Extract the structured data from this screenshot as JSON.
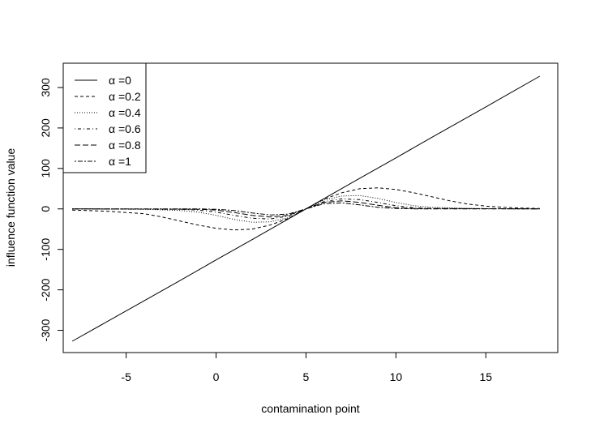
{
  "chart_data": {
    "type": "line",
    "title": "",
    "xlabel": "contamination point",
    "ylabel": "influence function value",
    "xlim": [
      -8.5,
      19
    ],
    "ylim": [
      -355,
      360
    ],
    "xticks": [
      -5,
      0,
      5,
      10,
      15
    ],
    "yticks": [
      -300,
      -200,
      -100,
      0,
      100,
      200,
      300
    ],
    "grid": false,
    "legend_position": "top-left",
    "series": [
      {
        "name": "α =0",
        "dash": "solid",
        "x": [
          -8,
          -5,
          -2,
          0,
          2,
          5,
          8,
          10,
          12,
          15,
          18
        ],
        "y": [
          -327,
          -252,
          -177,
          -126,
          -76,
          0,
          76,
          126,
          177,
          252,
          328
        ]
      },
      {
        "name": "α =0.2",
        "dash": "dashed",
        "x": [
          -8,
          -6,
          -4,
          -3,
          -2,
          -1,
          0,
          1,
          2,
          3,
          4,
          5,
          6,
          7,
          8,
          9,
          10,
          11,
          12,
          13,
          14,
          15,
          16,
          17,
          18
        ],
        "y": [
          -3,
          -6,
          -12,
          -20,
          -30,
          -40,
          -48,
          -52,
          -50,
          -40,
          -24,
          0,
          24,
          40,
          50,
          52,
          48,
          40,
          30,
          20,
          12,
          7,
          4,
          2,
          1
        ]
      },
      {
        "name": "α =0.4",
        "dash": "dotted",
        "x": [
          -8,
          -4,
          -2,
          -1,
          0,
          1,
          2,
          3,
          4,
          5,
          6,
          7,
          8,
          9,
          10,
          11,
          12,
          14,
          18
        ],
        "y": [
          0,
          -1,
          -4,
          -8,
          -16,
          -26,
          -33,
          -32,
          -22,
          0,
          22,
          32,
          33,
          26,
          16,
          8,
          4,
          1,
          0
        ]
      },
      {
        "name": "α =0.6",
        "dash": "dash-dot",
        "x": [
          -8,
          -2,
          -1,
          0,
          1,
          2,
          3,
          4,
          5,
          6,
          7,
          8,
          9,
          10,
          11,
          12,
          18
        ],
        "y": [
          0,
          -1,
          -3,
          -8,
          -16,
          -23,
          -25,
          -18,
          0,
          18,
          25,
          23,
          16,
          8,
          3,
          1,
          0
        ]
      },
      {
        "name": "α =0.8",
        "dash": "long-dash",
        "x": [
          -8,
          -1,
          0,
          1,
          2,
          3,
          4,
          5,
          6,
          7,
          8,
          9,
          10,
          11,
          18
        ],
        "y": [
          0,
          -1,
          -3,
          -9,
          -16,
          -20,
          -16,
          0,
          16,
          20,
          16,
          9,
          3,
          1,
          0
        ]
      },
      {
        "name": "α =1",
        "dash": "two-dash",
        "x": [
          -8,
          -1,
          0,
          1,
          2,
          3,
          4,
          5,
          6,
          7,
          8,
          9,
          10,
          11,
          18
        ],
        "y": [
          0,
          0,
          -1,
          -4,
          -10,
          -15,
          -13,
          0,
          13,
          15,
          10,
          4,
          1,
          0,
          0
        ]
      }
    ]
  }
}
